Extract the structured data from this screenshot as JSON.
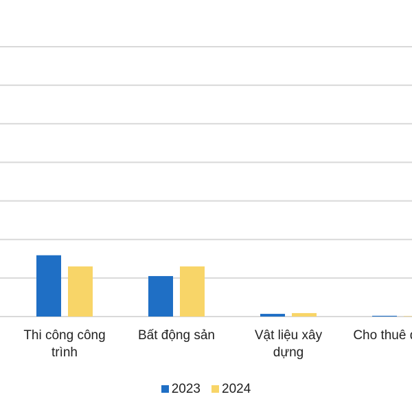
{
  "chart_data": {
    "type": "bar",
    "categories": [
      "Thi công công trình",
      "Bất động sản",
      "Vật liệu xây dựng",
      "Cho thuê đầu tư"
    ],
    "series": [
      {
        "name": "2023",
        "color": "#1f6fc5",
        "values": [
          1.59,
          1.05,
          0.07,
          0.02
        ]
      },
      {
        "name": "2024",
        "color": "#f8d568",
        "values": [
          1.3,
          1.3,
          0.09,
          0.01
        ]
      }
    ],
    "ylim": [
      0,
      7
    ],
    "yticks": [
      0,
      1,
      2,
      3,
      4,
      5,
      6,
      7
    ],
    "grid": true,
    "legend": "bottom"
  }
}
